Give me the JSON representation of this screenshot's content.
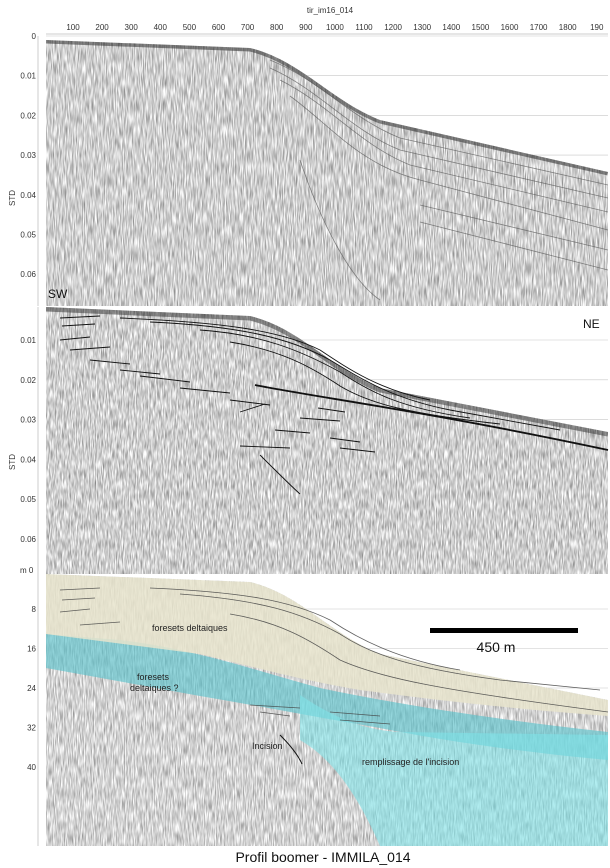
{
  "top_axis": {
    "title": "tir_im16_014",
    "ticks": [
      "100",
      "200",
      "300",
      "400",
      "500",
      "600",
      "700",
      "800",
      "900",
      "1000",
      "1100",
      "1200",
      "1300",
      "1400",
      "1500",
      "1600",
      "1700",
      "1800",
      "190"
    ]
  },
  "panel_top": {
    "y_axis_label": "STD",
    "y_ticks": [
      "0",
      "0.01",
      "0.02",
      "0.03",
      "0.04",
      "0.05",
      "0.06"
    ],
    "direction_left": "SW"
  },
  "panel_middle": {
    "y_axis_label": "STD",
    "y_ticks": [
      "0.01",
      "0.02",
      "0.03",
      "0.04",
      "0.05",
      "0.06"
    ],
    "direction_right": "NE"
  },
  "panel_bottom": {
    "depth_unit_label": "m 0",
    "y_ticks": [
      "8",
      "16",
      "24",
      "32",
      "40"
    ],
    "labels": {
      "foresets_upper": "foresets deltaiques",
      "foresets_lower_1": "foresets",
      "foresets_lower_2": "deltaiques ?",
      "incision": "Incision",
      "infill": "remplissage de l'incision"
    },
    "scale_bar_label": "450 m",
    "colors": {
      "upper_unit": "#e7e4cc",
      "lower_unit": "#5ec3cc",
      "incision_fill": "#7fe2e8"
    }
  },
  "caption": "Profil boomer - IMMILA_014"
}
